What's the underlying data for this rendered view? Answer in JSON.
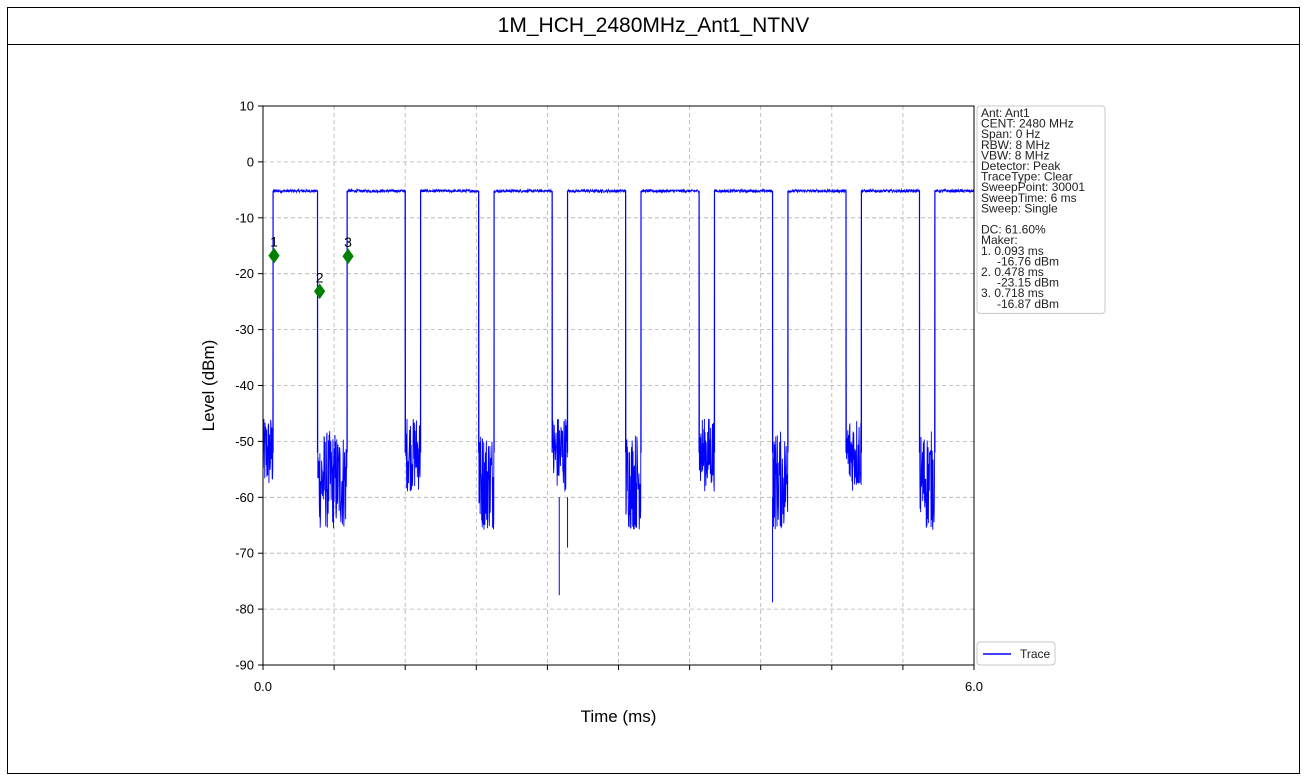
{
  "title": "1M_HCH_2480MHz_Ant1_NTNV",
  "chart_data": {
    "type": "line",
    "xlabel": "Time (ms)",
    "ylabel": "Level (dBm)",
    "xlim": [
      0.0,
      6.0
    ],
    "ylim": [
      -90,
      10
    ],
    "x_tick_labels": [
      "0.0",
      "6.0"
    ],
    "x_minor_ticks": [
      0.6,
      1.2,
      1.8,
      2.4,
      3.0,
      3.6,
      4.2,
      4.8,
      5.4
    ],
    "y_ticks": [
      10,
      0,
      -10,
      -20,
      -30,
      -40,
      -50,
      -60,
      -70,
      -80,
      -90
    ],
    "grid": true,
    "line_color": "#0000ff",
    "marker_color": "#008000",
    "series": [
      {
        "name": "Trace",
        "on_level": -5.2,
        "off_level_range": [
          -66,
          -46
        ],
        "on_segments": [
          [
            0.085,
            0.46
          ],
          [
            0.71,
            1.2
          ],
          [
            1.33,
            1.82
          ],
          [
            1.95,
            2.44
          ],
          [
            2.57,
            3.06
          ],
          [
            3.19,
            3.68
          ],
          [
            3.81,
            4.3
          ],
          [
            4.43,
            4.92
          ],
          [
            5.05,
            5.54
          ],
          [
            5.67,
            6.0
          ]
        ],
        "spikes": [
          {
            "x": 2.5,
            "y": -77.5
          },
          {
            "x": 4.3,
            "y": -78.8
          },
          {
            "x": 2.57,
            "y": -69
          }
        ]
      }
    ],
    "markers": [
      {
        "label": "1",
        "x": 0.093,
        "y": -16.76
      },
      {
        "label": "2",
        "x": 0.478,
        "y": -23.15
      },
      {
        "label": "3",
        "x": 0.718,
        "y": -16.87
      }
    ],
    "legend": {
      "label": "Trace",
      "position": "bottom-right outside"
    },
    "info_box": [
      "Ant: Ant1",
      "CENT: 2480 MHz",
      "Span: 0 Hz",
      "RBW: 8 MHz",
      "VBW: 8 MHz",
      "Detector: Peak",
      "TraceType: Clear",
      "SweepPoint: 30001",
      "SweepTime: 6 ms",
      "Sweep: Single",
      "",
      "DC: 61.60%",
      "Maker:",
      "1. 0.093 ms",
      "    -16.76 dBm",
      "2. 0.478 ms",
      "    -23.15 dBm",
      "3. 0.718 ms",
      "    -16.87 dBm"
    ]
  }
}
